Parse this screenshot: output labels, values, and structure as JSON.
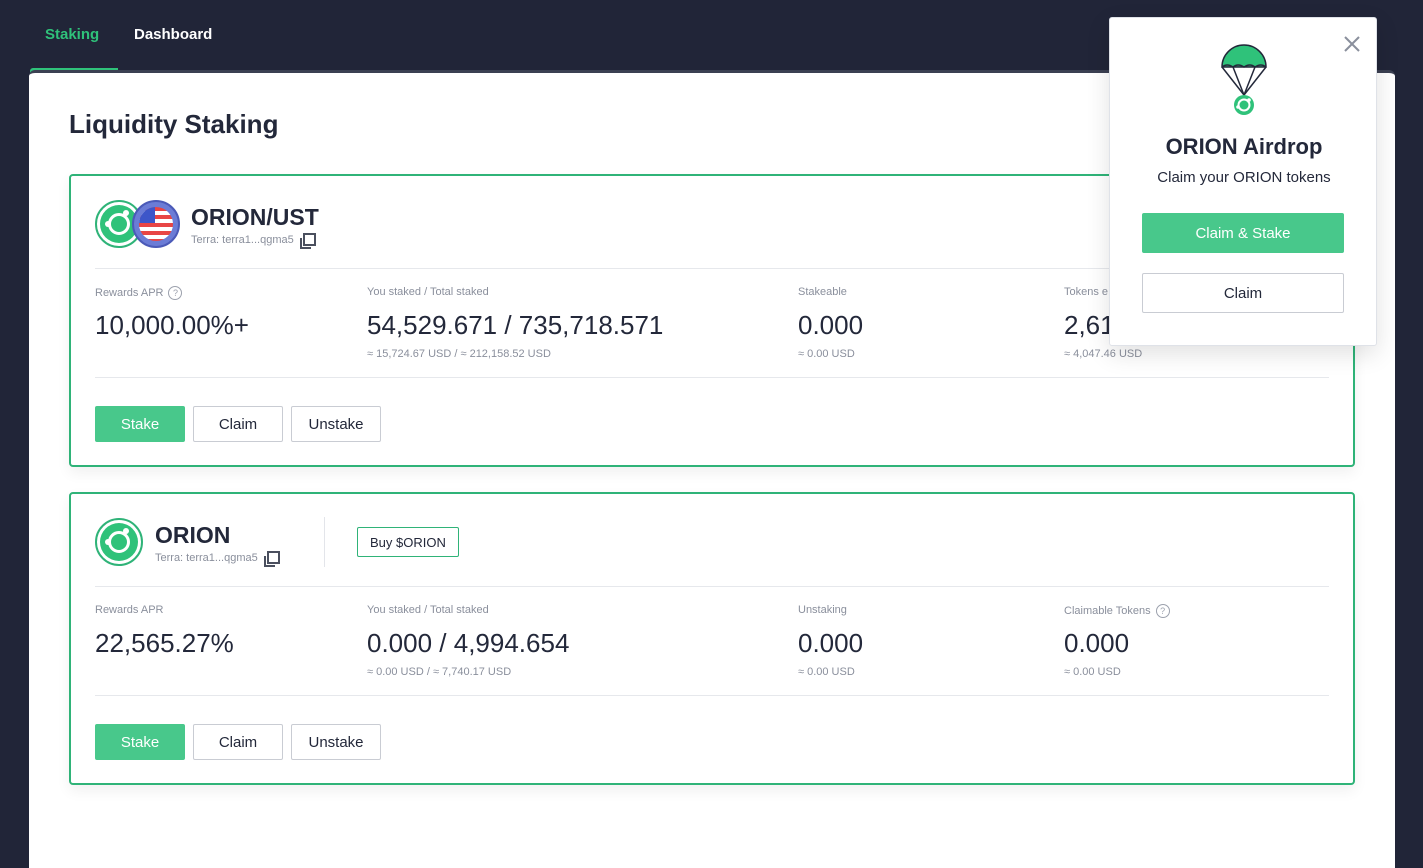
{
  "nav": {
    "tabs": [
      {
        "label": "Staking",
        "active": true
      },
      {
        "label": "Dashboard",
        "active": false
      }
    ]
  },
  "page": {
    "title": "Liquidity Staking"
  },
  "pools": [
    {
      "name": "ORION/UST",
      "contract": "Terra: terra1...qgma5",
      "stats": [
        {
          "label": "Rewards APR",
          "help": true,
          "value": "10,000.00%+",
          "sub": ""
        },
        {
          "label": "You staked / Total staked",
          "help": false,
          "value": "54,529.671 / 735,718.571",
          "sub": "≈ 15,724.67 USD / ≈ 212,158.52 USD"
        },
        {
          "label": "Stakeable",
          "help": false,
          "value": "0.000",
          "sub": "≈ 0.00 USD"
        },
        {
          "label": "Tokens e",
          "help": false,
          "value": "2,61",
          "sub": "≈ 4,047.46 USD"
        }
      ],
      "buttons": {
        "stake": "Stake",
        "claim": "Claim",
        "unstake": "Unstake"
      }
    },
    {
      "name": "ORION",
      "contract": "Terra: terra1...qgma5",
      "buy_label": "Buy $ORION",
      "stats": [
        {
          "label": "Rewards APR",
          "help": false,
          "value": "22,565.27%",
          "sub": ""
        },
        {
          "label": "You staked / Total staked",
          "help": false,
          "value": "0.000 / 4,994.654",
          "sub": "≈ 0.00 USD / ≈ 7,740.17 USD"
        },
        {
          "label": "Unstaking",
          "help": false,
          "value": "0.000",
          "sub": "≈ 0.00 USD"
        },
        {
          "label": "Claimable Tokens",
          "help": true,
          "value": "0.000",
          "sub": "≈ 0.00 USD"
        }
      ],
      "buttons": {
        "stake": "Stake",
        "claim": "Claim",
        "unstake": "Unstake"
      }
    }
  ],
  "airdrop": {
    "title": "ORION Airdrop",
    "subtitle": "Claim your ORION tokens",
    "claim_stake_label": "Claim & Stake",
    "claim_label": "Claim",
    "icon": "parachute-icon"
  },
  "icons": {
    "help": "?"
  },
  "colors": {
    "background": "#212538",
    "accent": "#2fc27a",
    "button_primary": "#48c88b",
    "card_border": "#2fb378",
    "text": "#23283a",
    "muted": "#8a8f9c"
  }
}
